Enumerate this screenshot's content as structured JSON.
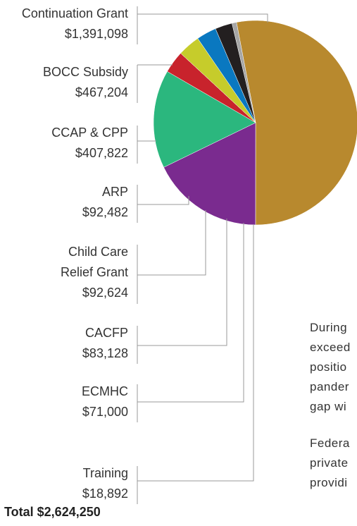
{
  "chart_data": {
    "type": "pie",
    "categories": [
      "Continuation Grant",
      "BOCC Subsidy",
      "CCAP & CPP",
      "ARP",
      "Child Care Relief Grant",
      "CACFP",
      "ECMHC",
      "Training"
    ],
    "values": [
      1391098,
      467204,
      407822,
      92482,
      92624,
      83128,
      71000,
      18892
    ],
    "value_labels": [
      "$1,391,098",
      "$467,204",
      "$407,822",
      "$92,482",
      "$92,624",
      "$83,128",
      "$71,000",
      "$18,892"
    ],
    "colors": [
      "#b8892e",
      "#7a2b8f",
      "#2bb77e",
      "#c8232c",
      "#c6cc2b",
      "#0a78c0",
      "#231f20",
      "#a6a6a6"
    ],
    "total_label": "Total $2,624,250"
  },
  "side_text": [
    "During",
    "exceed",
    "positio",
    "pander",
    "gap wi",
    "Federa",
    "private",
    "providi"
  ]
}
